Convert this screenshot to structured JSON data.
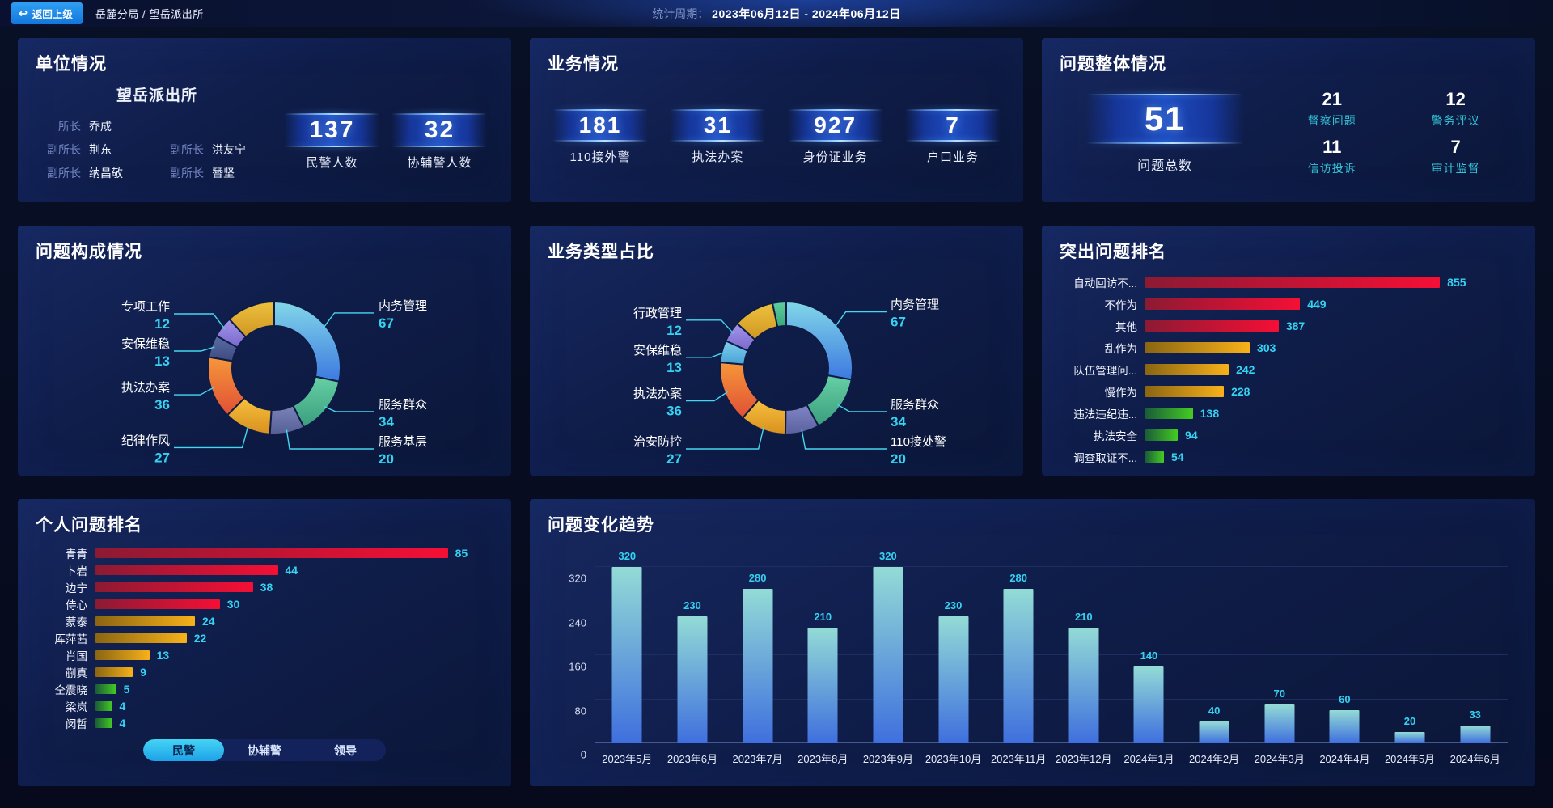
{
  "header": {
    "back_button": "返回上级",
    "breadcrumb": "岳麓分局 / 望岳派出所",
    "period_label": "统计周期：",
    "period_value": "2023年06月12日 - 2024年06月12日"
  },
  "unit_panel": {
    "title": "单位情况",
    "station_name": "望岳派出所",
    "leaders": [
      {
        "role": "所长",
        "name": "乔成"
      },
      {
        "role": "副所长",
        "name": "荆东"
      },
      {
        "role": "副所长",
        "name": "洪友宁"
      },
      {
        "role": "副所长",
        "name": "纳昌敬"
      },
      {
        "role": "副所长",
        "name": "朁坚"
      }
    ],
    "stats": [
      {
        "value": "137",
        "label": "民警人数"
      },
      {
        "value": "32",
        "label": "协辅警人数"
      }
    ]
  },
  "business_panel": {
    "title": "业务情况",
    "stats": [
      {
        "value": "181",
        "label": "110接外警"
      },
      {
        "value": "31",
        "label": "执法办案"
      },
      {
        "value": "927",
        "label": "身份证业务"
      },
      {
        "value": "7",
        "label": "户口业务"
      }
    ]
  },
  "problem_panel": {
    "title": "问题整体情况",
    "total": {
      "value": "51",
      "label": "问题总数"
    },
    "substats": [
      {
        "value": "21",
        "label": "督察问题"
      },
      {
        "value": "12",
        "label": "警务评议"
      },
      {
        "value": "11",
        "label": "信访投诉"
      },
      {
        "value": "7",
        "label": "审计监督"
      }
    ]
  },
  "composition_panel": {
    "title": "问题构成情况"
  },
  "business_type_panel": {
    "title": "业务类型占比"
  },
  "top_problems_panel": {
    "title": "突出问题排名"
  },
  "personal_panel": {
    "title": "个人问题排名",
    "tabs": [
      {
        "label": "民警",
        "active": true
      },
      {
        "label": "协辅警",
        "active": false
      },
      {
        "label": "领导",
        "active": false
      }
    ]
  },
  "trend_panel": {
    "title": "问题变化趋势"
  },
  "colors": {
    "accent_cyan": "#35d2f2",
    "leader_line": "#45d7ef",
    "teal_label": "#35c5d8",
    "tier_red": [
      "#8c1a33",
      "#f50f35"
    ],
    "tier_gold": [
      "#8a6512",
      "#f8b11a"
    ],
    "tier_green": [
      "#1a5c38",
      "#44cc22"
    ],
    "trend_bar": [
      "#93dbd6",
      "#3f6fde"
    ]
  },
  "chart_data": [
    {
      "id": "problem_composition",
      "type": "pie",
      "title": "问题构成情况",
      "legend_position": "callout-labels",
      "segments": [
        {
          "label": "内务管理",
          "value": 67,
          "c1": "#82d7e9",
          "c2": "#3c79e0"
        },
        {
          "label": "服务群众",
          "value": 34,
          "c1": "#66d0a6",
          "c2": "#3a9d7c"
        },
        {
          "label": "服务基层",
          "value": 20,
          "c1": "#7b84b8",
          "c2": "#555f96"
        },
        {
          "label": "纪律作风",
          "value": 27,
          "c1": "#f6c03e",
          "c2": "#d8901e"
        },
        {
          "label": "执法办案",
          "value": 36,
          "c1": "#f6973a",
          "c2": "#e04f35"
        },
        {
          "label": "安保维稳",
          "value": 13,
          "c1": "#5b6da6",
          "c2": "#3c4a80"
        },
        {
          "label": "专项工作",
          "value": 12,
          "c1": "#a496ea",
          "c2": "#7868cc"
        },
        {
          "label": "",
          "value": 28,
          "c1": "#eec23e",
          "c2": "#cf9622"
        }
      ]
    },
    {
      "id": "business_type",
      "type": "pie",
      "title": "业务类型占比",
      "legend_position": "callout-labels",
      "segments": [
        {
          "label": "内务管理",
          "value": 67,
          "c1": "#82d7e9",
          "c2": "#3c79e0"
        },
        {
          "label": "服务群众",
          "value": 34,
          "c1": "#66d0a6",
          "c2": "#3a9d7c"
        },
        {
          "label": "110接处警",
          "value": 20,
          "c1": "#8187c6",
          "c2": "#5a5f9e"
        },
        {
          "label": "治安防控",
          "value": 27,
          "c1": "#f6c03e",
          "c2": "#d8901e"
        },
        {
          "label": "执法办案",
          "value": 36,
          "c1": "#f6973a",
          "c2": "#e04f35"
        },
        {
          "label": "安保维稳",
          "value": 13,
          "c1": "#7fd0ea",
          "c2": "#48a2d8"
        },
        {
          "label": "行政管理",
          "value": 12,
          "c1": "#a496ea",
          "c2": "#7868cc"
        },
        {
          "label": "",
          "value": 24,
          "c1": "#eec23e",
          "c2": "#cf9622"
        },
        {
          "label": "",
          "value": 8,
          "c1": "#5ecf9e",
          "c2": "#3aa87a"
        }
      ]
    },
    {
      "id": "top_problems",
      "type": "bar",
      "orientation": "horizontal",
      "title": "突出问题排名",
      "xmax": 1080,
      "items": [
        {
          "label": "自动回访不...",
          "value": 855,
          "tier": "red"
        },
        {
          "label": "不作为",
          "value": 449,
          "tier": "red"
        },
        {
          "label": "其他",
          "value": 387,
          "tier": "red"
        },
        {
          "label": "乱作为",
          "value": 303,
          "tier": "gold"
        },
        {
          "label": "队伍管理问...",
          "value": 242,
          "tier": "gold"
        },
        {
          "label": "慢作为",
          "value": 228,
          "tier": "gold"
        },
        {
          "label": "违法违纪违...",
          "value": 138,
          "tier": "green"
        },
        {
          "label": "执法安全",
          "value": 94,
          "tier": "green"
        },
        {
          "label": "调查取证不...",
          "value": 54,
          "tier": "green"
        }
      ]
    },
    {
      "id": "personal_ranking",
      "type": "bar",
      "orientation": "horizontal",
      "title": "个人问题排名",
      "xmax": 96,
      "items": [
        {
          "label": "青青",
          "value": 85,
          "tier": "red"
        },
        {
          "label": "卜岩",
          "value": 44,
          "tier": "red"
        },
        {
          "label": "边宁",
          "value": 38,
          "tier": "red"
        },
        {
          "label": "侍心",
          "value": 30,
          "tier": "red"
        },
        {
          "label": "蒙泰",
          "value": 24,
          "tier": "gold"
        },
        {
          "label": "厍萍茜",
          "value": 22,
          "tier": "gold"
        },
        {
          "label": "肖国",
          "value": 13,
          "tier": "gold"
        },
        {
          "label": "蒯真",
          "value": 9,
          "tier": "gold"
        },
        {
          "label": "仝震晓",
          "value": 5,
          "tier": "green"
        },
        {
          "label": "梁岚",
          "value": 4,
          "tier": "green"
        },
        {
          "label": "闵哲",
          "value": 4,
          "tier": "green"
        }
      ]
    },
    {
      "id": "trend",
      "type": "bar",
      "orientation": "vertical",
      "title": "问题变化趋势",
      "categories": [
        "2023年5月",
        "2023年6月",
        "2023年7月",
        "2023年8月",
        "2023年9月",
        "2023年10月",
        "2023年11月",
        "2023年12月",
        "2024年1月",
        "2024年2月",
        "2024年3月",
        "2024年4月",
        "2024年5月",
        "2024年6月"
      ],
      "values": [
        320,
        230,
        280,
        210,
        320,
        230,
        280,
        210,
        140,
        40,
        70,
        60,
        20,
        33
      ],
      "ylim": [
        0,
        320
      ],
      "yticks": [
        0,
        80,
        160,
        240,
        320
      ],
      "grid": true
    }
  ]
}
